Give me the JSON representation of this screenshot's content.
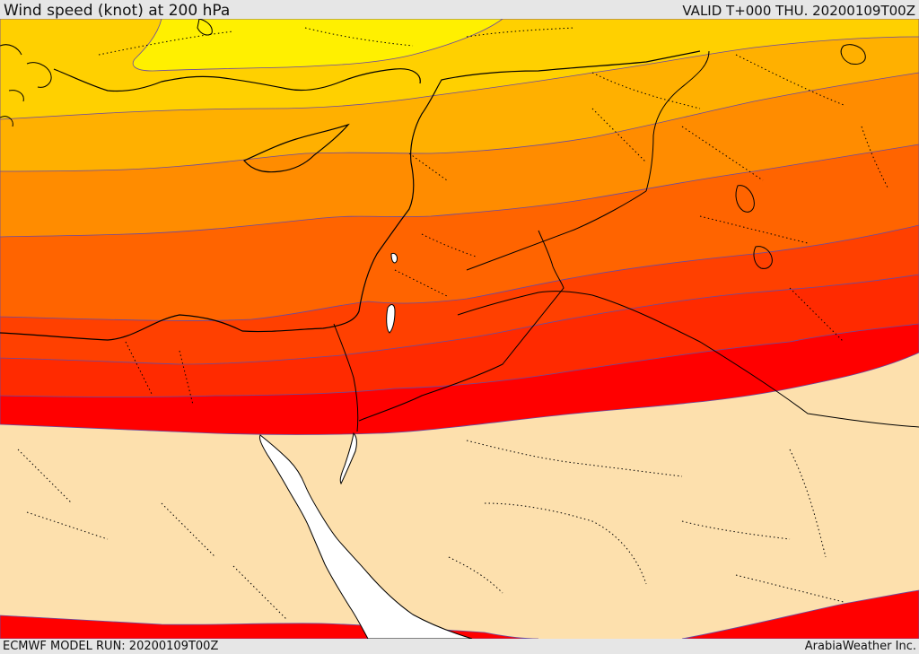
{
  "header": {
    "title": "Wind speed (knot) at 200 hPa",
    "valid_time": "VALID T+000 THU. 20200109T00Z"
  },
  "footer": {
    "model_run": "ECMWF MODEL RUN: 20200109T00Z",
    "credit": "ArabiaWeather Inc."
  },
  "map": {
    "field": "wind speed at 200 hPa",
    "legend_visible": false,
    "band_colors": {
      "calm": "#fde0ad",
      "band_1": "#ff0000",
      "band_2": "#ff2a00",
      "band_3": "#ff4000",
      "band_4": "#ff6400",
      "band_5": "#ff8c00",
      "band_6": "#ffb000",
      "band_7": "#ffd000",
      "band_8": "#fff000",
      "sea_unshaded": "#ffffff"
    },
    "boundary_style": {
      "coastline": "solid black",
      "borders": "dotted black"
    }
  }
}
